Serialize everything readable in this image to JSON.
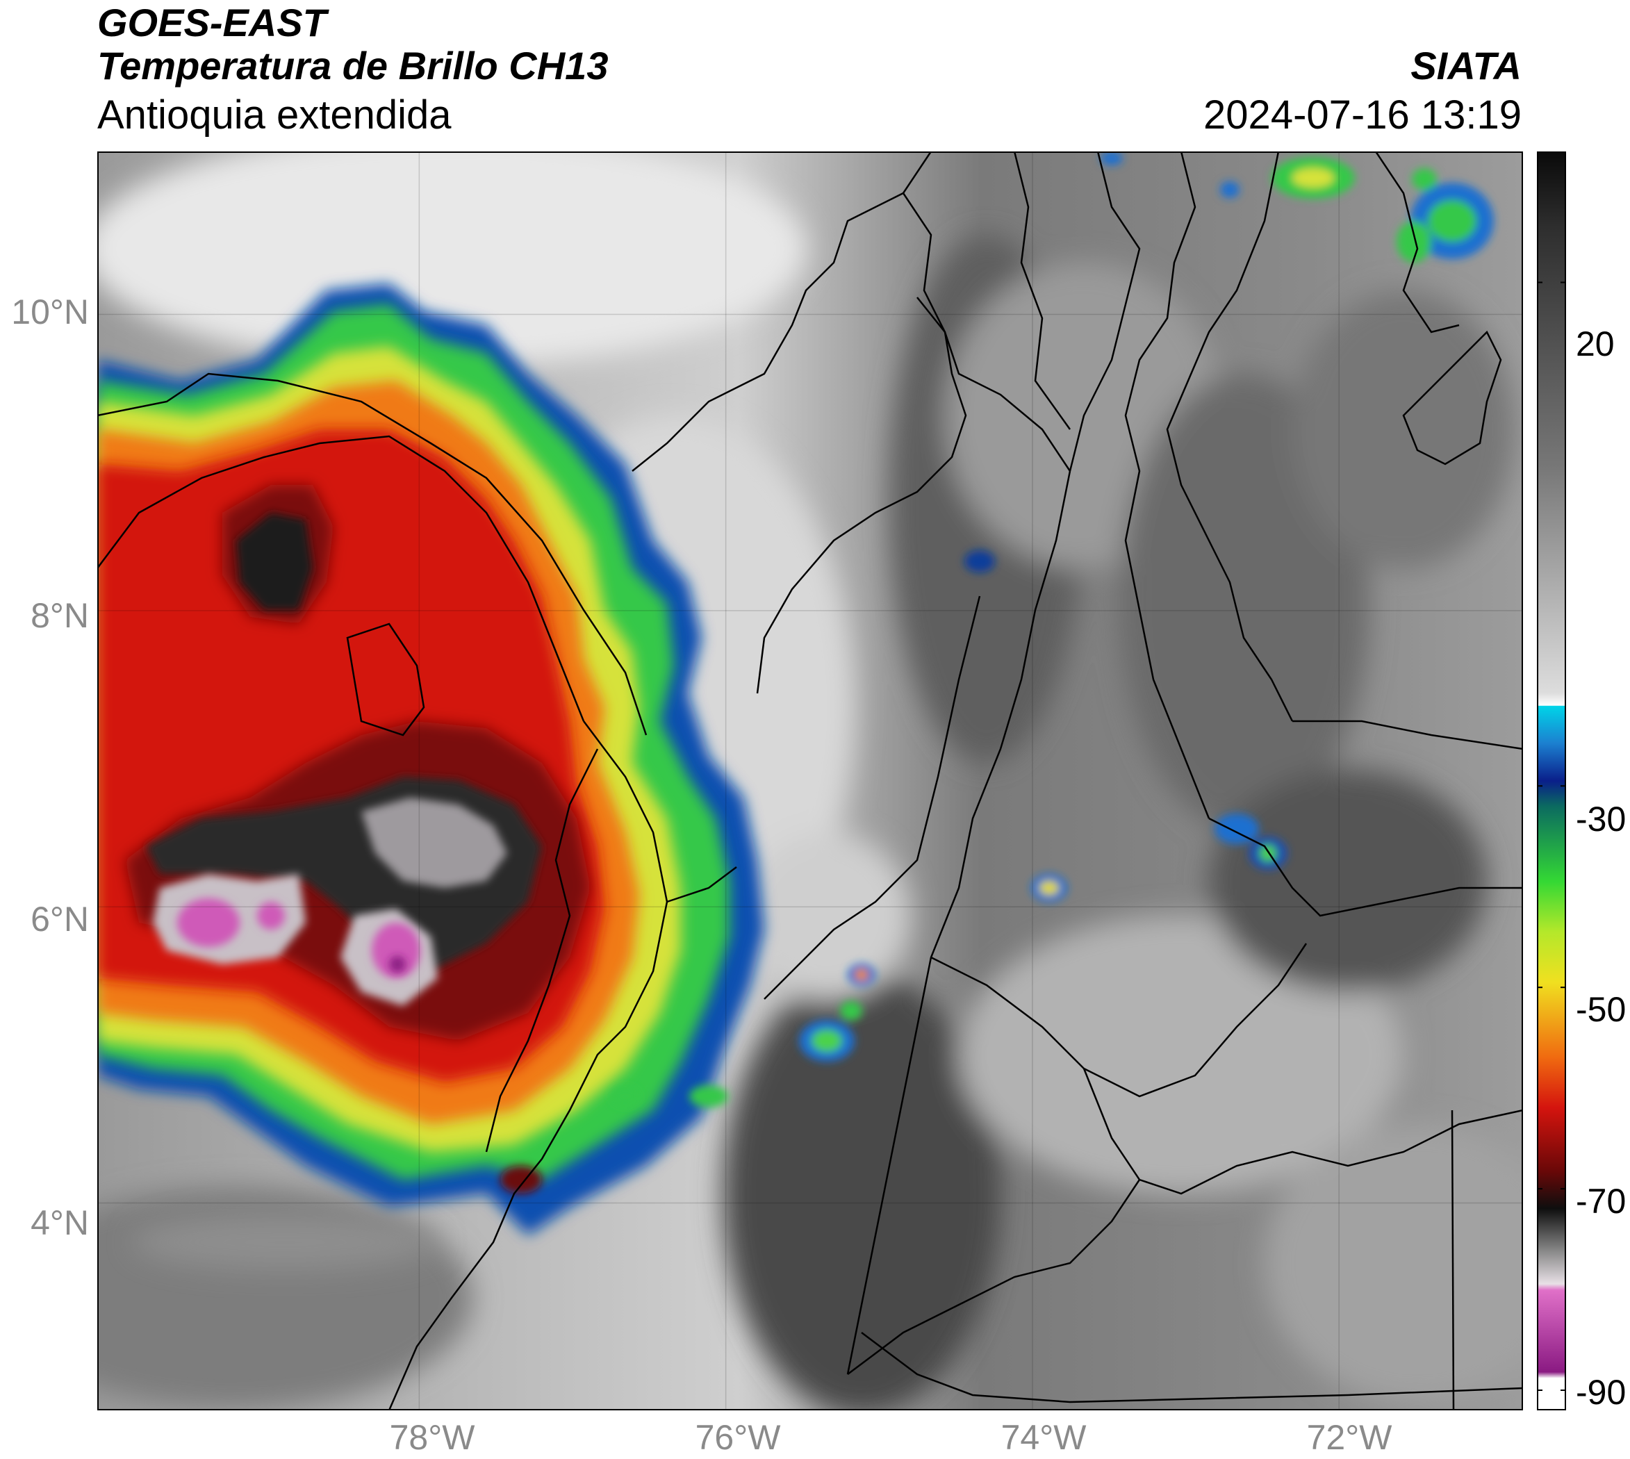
{
  "header": {
    "satellite": "GOES-EAST",
    "product": "Temperatura de Brillo CH13",
    "region": "Antioquia extendida",
    "organization": "SIATA",
    "timestamp": "2024-07-16 13:19"
  },
  "axes": {
    "lat_labels": [
      "10°N",
      "8°N",
      "6°N",
      "4°N"
    ],
    "lon_labels": [
      "78°W",
      "76°W",
      "74°W",
      "72°W"
    ],
    "lat_values": [
      10,
      8,
      6,
      4
    ],
    "lon_values": [
      -78,
      -76,
      -74,
      -72
    ],
    "lat_range": [
      2.6,
      11.1
    ],
    "lon_range": [
      -80.1,
      -70.8
    ]
  },
  "colorbar": {
    "labels": [
      "20",
      "-30",
      "-50",
      "-70",
      "-90"
    ],
    "values": [
      20,
      -30,
      -50,
      -70,
      -90
    ],
    "range": [
      -92,
      33
    ],
    "unit_shown": ""
  },
  "chart_data": {
    "type": "heatmap",
    "title": "Temperatura de Brillo CH13",
    "colorbar_ticks": [
      20,
      -30,
      -50,
      -70,
      -90
    ],
    "cold_cloud_centers": [
      {
        "lon": -78.8,
        "lat": 8.5,
        "intensity": -72
      },
      {
        "lon": -79.3,
        "lat": 5.8,
        "intensity": -85
      },
      {
        "lon": -77.9,
        "lat": 5.7,
        "intensity": -88
      },
      {
        "lon": -78.0,
        "lat": 6.6,
        "intensity": -78
      },
      {
        "lon": -77.3,
        "lat": 4.3,
        "intensity": -65
      }
    ],
    "small_cells": [
      {
        "lon": -74.3,
        "lat": 8.3
      },
      {
        "lon": -73.9,
        "lat": 6.2
      },
      {
        "lon": -72.6,
        "lat": 6.6
      },
      {
        "lon": -72.4,
        "lat": 6.4
      },
      {
        "lon": -75.4,
        "lat": 5.4
      },
      {
        "lon": -75.7,
        "lat": 4.9
      },
      {
        "lon": -71.9,
        "lat": 10.8
      },
      {
        "lon": -71.2,
        "lat": 10.5
      }
    ]
  }
}
